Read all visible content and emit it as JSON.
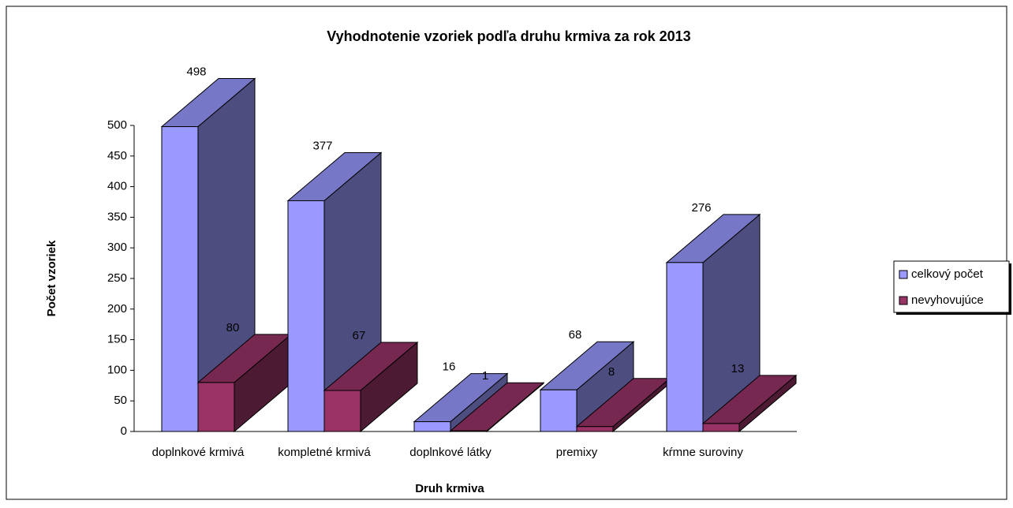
{
  "chart_data": {
    "type": "bar3d",
    "title": "Vyhodnotenie vzoriek podľa druhu krmiva za rok 2013",
    "x_label": "Druh krmiva",
    "y_label": "Počet vzoriek",
    "categories": [
      "doplnkové krmivá",
      "kompletné krmivá",
      "doplnkové látky",
      "premixy",
      "kŕmne suroviny"
    ],
    "series": [
      {
        "name": "celkový počet",
        "color": "#9999ff",
        "values": [
          498,
          377,
          16,
          68,
          276
        ]
      },
      {
        "name": "nevyhovujúce",
        "color": "#993366",
        "values": [
          80,
          67,
          1,
          8,
          13
        ]
      }
    ],
    "ylim": [
      0,
      500
    ],
    "yticks": [
      0,
      50,
      100,
      150,
      200,
      250,
      300,
      350,
      400,
      450,
      500
    ],
    "legend": "right"
  }
}
